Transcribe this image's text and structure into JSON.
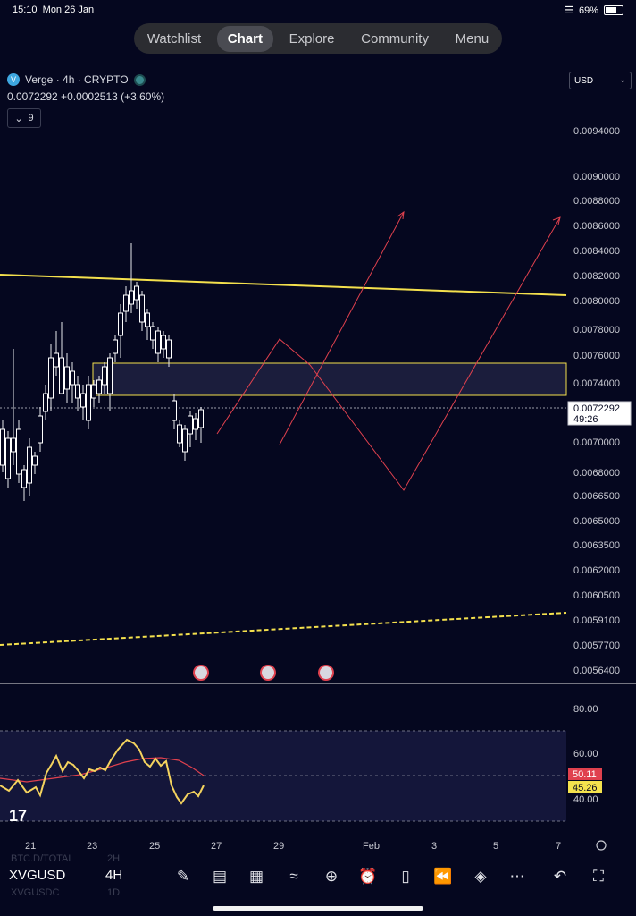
{
  "status_bar": {
    "time": "15:10",
    "date": "Mon 26 Jan",
    "battery": "69%"
  },
  "nav": {
    "tabs": [
      "Watchlist",
      "Chart",
      "Explore",
      "Community",
      "Menu"
    ],
    "active": "Chart"
  },
  "legend": {
    "logo_letter": "V",
    "title": "Verge · 4h · CRYPTO",
    "quote": "0.0072292 +0.0002513 (+3.60%)",
    "indicator_count": "9"
  },
  "currency": "USD",
  "price_axis": {
    "labels": [
      "0.0094000",
      "0.0090000",
      "0.0088000",
      "0.0086000",
      "0.0084000",
      "0.0082000",
      "0.0080000",
      "0.0078000",
      "0.0076000",
      "0.0074000",
      "0.0070000",
      "0.0068000",
      "0.0066500",
      "0.0065000",
      "0.0063500",
      "0.0062000",
      "0.0060500",
      "0.0059100",
      "0.0057700",
      "0.0056400"
    ],
    "last_price": "0.0072292",
    "countdown": "49:26"
  },
  "rsi_axis": {
    "labels": [
      "80.00",
      "60.00",
      "40.00"
    ],
    "ma_value": "50.11",
    "rsi_value": "45.26"
  },
  "time_axis": {
    "labels": [
      "21",
      "23",
      "25",
      "27",
      "29",
      "Feb",
      "3",
      "5",
      "7"
    ]
  },
  "colors": {
    "background": "#05071f",
    "up": "#ffffff",
    "trendline": "#f4e04d",
    "projection": "#e0414e",
    "rsi": "#f4d35e",
    "rsi_ma": "#e0414e"
  },
  "toolbar": {
    "symbol": "XVGUSD",
    "symbol_prev": "BTC.D/TOTAL",
    "symbol_next": "XVGUSDC",
    "timeframe": "4H",
    "timeframe_prev": "2H",
    "timeframe_next": "1D",
    "icons": [
      "pen-icon",
      "indicators-icon",
      "layout-grid-icon",
      "compare-icon",
      "add-icon",
      "alarm-icon",
      "candle-type-icon",
      "replay-icon",
      "layers-icon",
      "more-icon",
      "undo-icon",
      "fullscreen-icon"
    ]
  }
}
